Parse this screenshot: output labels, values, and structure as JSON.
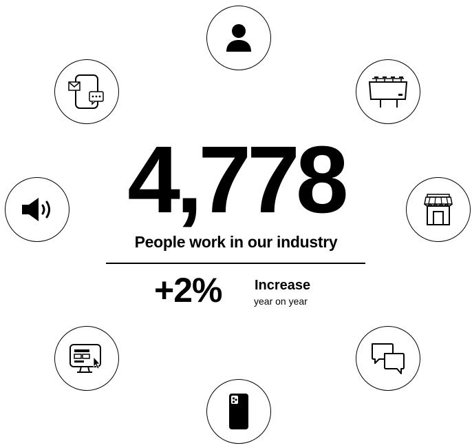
{
  "stat": {
    "value": "4,778",
    "label": "People work in our industry"
  },
  "change": {
    "value": "+2%",
    "label": "Increase",
    "sublabel": "year on year"
  },
  "icons": [
    "person-icon",
    "messages-icon",
    "billboard-icon",
    "speaker-icon",
    "store-icon",
    "display-ad-icon",
    "chat-icon",
    "smartphone-icon"
  ]
}
